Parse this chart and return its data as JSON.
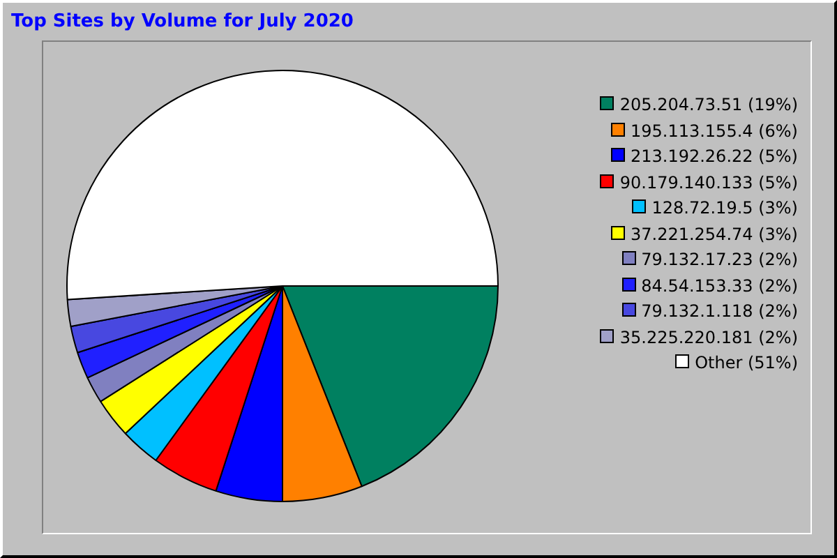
{
  "chart_data": {
    "type": "pie",
    "title": "Top Sites by Volume for July 2020",
    "categories": [
      "205.204.73.51 (19%)",
      "195.113.155.4 (6%)",
      "213.192.26.22 (5%)",
      "90.179.140.133 (5%)",
      "128.72.19.5 (3%)",
      "37.221.254.74 (3%)",
      "79.132.17.23 (2%)",
      "84.54.153.33 (2%)",
      "79.132.1.118 (2%)",
      "35.225.220.181 (2%)",
      "Other (51%)"
    ],
    "values": [
      19,
      6,
      5,
      5,
      3,
      3,
      2,
      2,
      2,
      2,
      51
    ],
    "legend": "right",
    "colors": [
      "#008060",
      "#ff8000",
      "#0000ff",
      "#ff0000",
      "#00c0ff",
      "#ffff00",
      "#8080c0",
      "#2020ff",
      "#4848e0",
      "#a0a0c8",
      "#ffffff"
    ]
  }
}
